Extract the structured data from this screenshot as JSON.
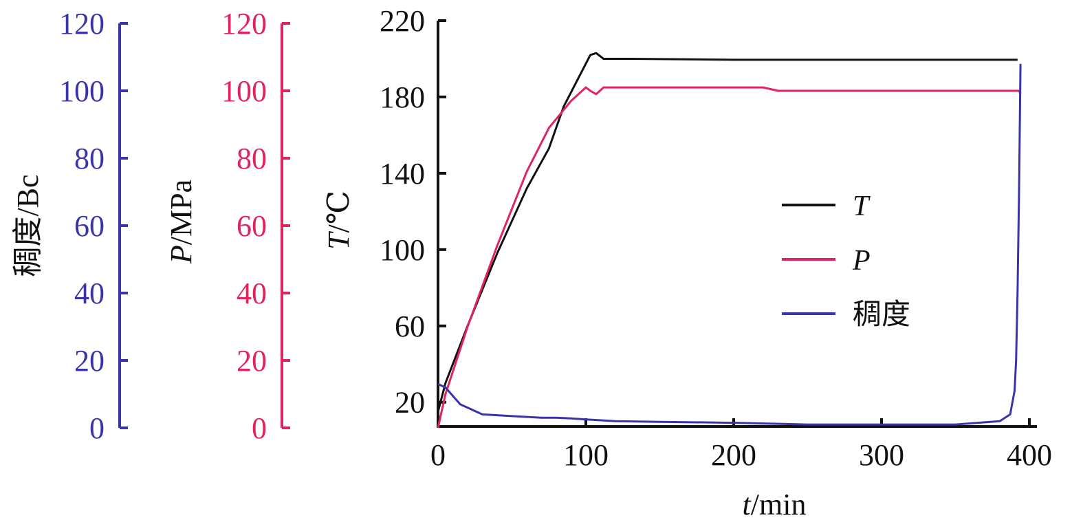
{
  "chart_data": {
    "type": "line",
    "title": "",
    "xlabel": {
      "var": "t",
      "unit": "/min"
    },
    "x_axis": {
      "range": [
        0,
        400
      ],
      "ticks": [
        0,
        100,
        200,
        300,
        400
      ]
    },
    "axes": {
      "T": {
        "label_var": "T",
        "label_unit": "/℃",
        "range": [
          8,
          220
        ],
        "ticks": [
          20,
          60,
          100,
          140,
          180,
          220
        ],
        "color": "#111111"
      },
      "P": {
        "label_var": "P",
        "label_unit": "/MPa",
        "range": [
          0,
          120
        ],
        "ticks": [
          0,
          20,
          40,
          60,
          80,
          100,
          120
        ],
        "color": "#e0245e"
      },
      "consistency": {
        "label": "稠度/Bc",
        "range": [
          0,
          120
        ],
        "ticks": [
          0,
          20,
          40,
          60,
          80,
          100,
          120
        ],
        "color": "#3a34a8"
      }
    },
    "legend": {
      "position": "center-right",
      "entries": [
        {
          "label": "T",
          "italic": true,
          "color": "#111111"
        },
        {
          "label": "P",
          "italic": true,
          "color": "#e0245e"
        },
        {
          "label": "稠度",
          "italic": false,
          "color": "#3a34a8"
        }
      ]
    },
    "grid": false,
    "series": [
      {
        "name": "T",
        "axis": "T",
        "color": "#111111",
        "points": [
          [
            0,
            15
          ],
          [
            5,
            30
          ],
          [
            20,
            60
          ],
          [
            40,
            98
          ],
          [
            60,
            132
          ],
          [
            75,
            153
          ],
          [
            85,
            175
          ],
          [
            95,
            190
          ],
          [
            103,
            202
          ],
          [
            107,
            203
          ],
          [
            112,
            200
          ],
          [
            130,
            200
          ],
          [
            200,
            199.5
          ],
          [
            250,
            199.5
          ],
          [
            300,
            199.5
          ],
          [
            350,
            199.5
          ],
          [
            392,
            199.5
          ]
        ]
      },
      {
        "name": "P",
        "axis": "P",
        "color": "#e0245e",
        "points": [
          [
            0,
            0
          ],
          [
            5,
            10
          ],
          [
            20,
            30
          ],
          [
            40,
            54
          ],
          [
            60,
            76
          ],
          [
            75,
            89
          ],
          [
            90,
            97
          ],
          [
            100,
            101
          ],
          [
            103,
            100
          ],
          [
            107,
            99
          ],
          [
            112,
            101
          ],
          [
            130,
            101
          ],
          [
            200,
            101
          ],
          [
            220,
            101
          ],
          [
            230,
            100
          ],
          [
            260,
            100
          ],
          [
            300,
            100
          ],
          [
            350,
            100
          ],
          [
            390,
            100
          ],
          [
            393,
            100
          ],
          [
            394,
            99
          ]
        ]
      },
      {
        "name": "稠度",
        "axis": "consistency",
        "color": "#3a34a8",
        "points": [
          [
            0,
            13
          ],
          [
            5,
            12
          ],
          [
            15,
            7
          ],
          [
            30,
            4
          ],
          [
            50,
            3.5
          ],
          [
            70,
            3
          ],
          [
            80,
            3
          ],
          [
            90,
            2.8
          ],
          [
            100,
            2.5
          ],
          [
            120,
            2
          ],
          [
            150,
            1.8
          ],
          [
            200,
            1.5
          ],
          [
            250,
            1
          ],
          [
            300,
            1
          ],
          [
            350,
            1
          ],
          [
            380,
            2
          ],
          [
            387,
            4
          ],
          [
            390,
            11
          ],
          [
            391,
            20
          ],
          [
            392,
            40
          ],
          [
            393,
            70
          ],
          [
            394,
            108
          ]
        ]
      }
    ]
  }
}
